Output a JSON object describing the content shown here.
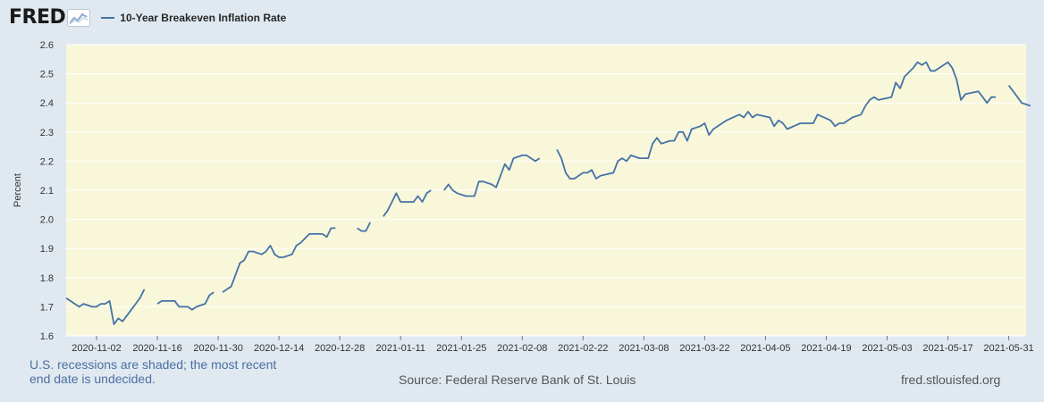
{
  "header": {
    "logo_text": "FRED",
    "logo_icon": "chart-line-icon"
  },
  "colors": {
    "plot_background": "#f8f7da",
    "series_line": "#4572a7",
    "page_background": "#e1e9f0"
  },
  "footer": {
    "recession_note": "U.S. recessions are shaded; the most recent end date is undecided.",
    "source": "Source: Federal Reserve Bank of St. Louis",
    "site": "fred.stlouisfed.org"
  },
  "chart_data": {
    "type": "line",
    "title": "",
    "xlabel": "",
    "ylabel": "Percent",
    "ylim": [
      1.6,
      2.6
    ],
    "yticks": [
      "1.6",
      "1.7",
      "1.8",
      "1.9",
      "2.0",
      "2.1",
      "2.2",
      "2.3",
      "2.4",
      "2.5",
      "2.6"
    ],
    "xlim": [
      "2020-10-26",
      "2021-06-04"
    ],
    "xticks": [
      "2020-11-02",
      "2020-11-16",
      "2020-11-30",
      "2020-12-14",
      "2020-12-28",
      "2021-01-11",
      "2021-01-25",
      "2021-02-08",
      "2021-02-22",
      "2021-03-08",
      "2021-03-22",
      "2021-04-05",
      "2021-04-19",
      "2021-05-03",
      "2021-05-17",
      "2021-05-31"
    ],
    "grid": "horizontal",
    "legend": "top-left",
    "series": [
      {
        "name": "10-Year Breakeven Inflation Rate",
        "segments": [
          [
            [
              "2020-10-26",
              1.73
            ],
            [
              "2020-10-27",
              1.72
            ],
            [
              "2020-10-28",
              1.71
            ],
            [
              "2020-10-29",
              1.7
            ],
            [
              "2020-10-30",
              1.71
            ],
            [
              "2020-11-01",
              1.7
            ],
            [
              "2020-11-02",
              1.7
            ],
            [
              "2020-11-03",
              1.71
            ],
            [
              "2020-11-04",
              1.71
            ],
            [
              "2020-11-05",
              1.72
            ],
            [
              "2020-11-06",
              1.64
            ],
            [
              "2020-11-07",
              1.66
            ],
            [
              "2020-11-08",
              1.65
            ],
            [
              "2020-11-10",
              1.69
            ],
            [
              "2020-11-12",
              1.73
            ],
            [
              "2020-11-13",
              1.76
            ]
          ],
          [
            [
              "2020-11-16",
              1.71
            ],
            [
              "2020-11-17",
              1.72
            ],
            [
              "2020-11-18",
              1.72
            ],
            [
              "2020-11-20",
              1.72
            ],
            [
              "2020-11-21",
              1.7
            ],
            [
              "2020-11-23",
              1.7
            ],
            [
              "2020-11-24",
              1.69
            ],
            [
              "2020-11-25",
              1.7
            ],
            [
              "2020-11-27",
              1.71
            ],
            [
              "2020-11-28",
              1.74
            ],
            [
              "2020-11-29",
              1.75
            ]
          ],
          [
            [
              "2020-12-01",
              1.75
            ],
            [
              "2020-12-03",
              1.77
            ],
            [
              "2020-12-05",
              1.85
            ],
            [
              "2020-12-06",
              1.86
            ],
            [
              "2020-12-07",
              1.89
            ],
            [
              "2020-12-08",
              1.89
            ],
            [
              "2020-12-10",
              1.88
            ],
            [
              "2020-12-11",
              1.89
            ],
            [
              "2020-12-12",
              1.91
            ],
            [
              "2020-12-13",
              1.88
            ],
            [
              "2020-12-14",
              1.87
            ],
            [
              "2020-12-15",
              1.87
            ],
            [
              "2020-12-17",
              1.88
            ],
            [
              "2020-12-18",
              1.91
            ],
            [
              "2020-12-19",
              1.92
            ],
            [
              "2020-12-21",
              1.95
            ],
            [
              "2020-12-22",
              1.95
            ],
            [
              "2020-12-24",
              1.95
            ],
            [
              "2020-12-25",
              1.94
            ],
            [
              "2020-12-26",
              1.97
            ],
            [
              "2020-12-27",
              1.97
            ]
          ],
          [
            [
              "2021-01-01",
              1.97
            ],
            [
              "2021-01-02",
              1.96
            ],
            [
              "2021-01-03",
              1.96
            ],
            [
              "2021-01-04",
              1.99
            ]
          ],
          [
            [
              "2021-01-07",
              2.01
            ],
            [
              "2021-01-08",
              2.03
            ],
            [
              "2021-01-09",
              2.06
            ],
            [
              "2021-01-10",
              2.09
            ],
            [
              "2021-01-11",
              2.06
            ],
            [
              "2021-01-12",
              2.06
            ],
            [
              "2021-01-14",
              2.06
            ],
            [
              "2021-01-15",
              2.08
            ],
            [
              "2021-01-16",
              2.06
            ],
            [
              "2021-01-17",
              2.09
            ],
            [
              "2021-01-18",
              2.1
            ]
          ],
          [
            [
              "2021-01-21",
              2.1
            ],
            [
              "2021-01-22",
              2.12
            ],
            [
              "2021-01-23",
              2.1
            ],
            [
              "2021-01-24",
              2.09
            ],
            [
              "2021-01-26",
              2.08
            ],
            [
              "2021-01-28",
              2.08
            ],
            [
              "2021-01-29",
              2.13
            ],
            [
              "2021-01-30",
              2.13
            ],
            [
              "2021-02-01",
              2.12
            ],
            [
              "2021-02-02",
              2.11
            ],
            [
              "2021-02-04",
              2.19
            ],
            [
              "2021-02-05",
              2.17
            ],
            [
              "2021-02-06",
              2.21
            ],
            [
              "2021-02-08",
              2.22
            ],
            [
              "2021-02-09",
              2.22
            ],
            [
              "2021-02-11",
              2.2
            ],
            [
              "2021-02-12",
              2.21
            ]
          ],
          [
            [
              "2021-02-16",
              2.24
            ],
            [
              "2021-02-17",
              2.21
            ],
            [
              "2021-02-18",
              2.16
            ],
            [
              "2021-02-19",
              2.14
            ],
            [
              "2021-02-20",
              2.14
            ],
            [
              "2021-02-22",
              2.16
            ],
            [
              "2021-02-23",
              2.16
            ],
            [
              "2021-02-24",
              2.17
            ],
            [
              "2021-02-25",
              2.14
            ],
            [
              "2021-02-26",
              2.15
            ],
            [
              "2021-03-01",
              2.16
            ],
            [
              "2021-03-02",
              2.2
            ],
            [
              "2021-03-03",
              2.21
            ],
            [
              "2021-03-04",
              2.2
            ],
            [
              "2021-03-05",
              2.22
            ],
            [
              "2021-03-07",
              2.21
            ],
            [
              "2021-03-09",
              2.21
            ],
            [
              "2021-03-10",
              2.26
            ],
            [
              "2021-03-11",
              2.28
            ],
            [
              "2021-03-12",
              2.26
            ],
            [
              "2021-03-14",
              2.27
            ],
            [
              "2021-03-15",
              2.27
            ],
            [
              "2021-03-16",
              2.3
            ],
            [
              "2021-03-17",
              2.3
            ],
            [
              "2021-03-18",
              2.27
            ],
            [
              "2021-03-19",
              2.31
            ],
            [
              "2021-03-21",
              2.32
            ],
            [
              "2021-03-22",
              2.33
            ],
            [
              "2021-03-23",
              2.29
            ],
            [
              "2021-03-24",
              2.31
            ],
            [
              "2021-03-25",
              2.32
            ],
            [
              "2021-03-27",
              2.34
            ],
            [
              "2021-03-30",
              2.36
            ],
            [
              "2021-03-31",
              2.35
            ],
            [
              "2021-04-01",
              2.37
            ],
            [
              "2021-04-02",
              2.35
            ],
            [
              "2021-04-03",
              2.36
            ],
            [
              "2021-04-06",
              2.35
            ],
            [
              "2021-04-07",
              2.32
            ],
            [
              "2021-04-08",
              2.34
            ],
            [
              "2021-04-09",
              2.33
            ],
            [
              "2021-04-10",
              2.31
            ],
            [
              "2021-04-13",
              2.33
            ],
            [
              "2021-04-16",
              2.33
            ],
            [
              "2021-04-17",
              2.36
            ],
            [
              "2021-04-20",
              2.34
            ],
            [
              "2021-04-21",
              2.32
            ],
            [
              "2021-04-22",
              2.33
            ],
            [
              "2021-04-23",
              2.33
            ],
            [
              "2021-04-25",
              2.35
            ],
            [
              "2021-04-27",
              2.36
            ],
            [
              "2021-04-28",
              2.39
            ],
            [
              "2021-04-29",
              2.41
            ],
            [
              "2021-04-30",
              2.42
            ],
            [
              "2021-05-01",
              2.41
            ],
            [
              "2021-05-04",
              2.42
            ],
            [
              "2021-05-05",
              2.47
            ],
            [
              "2021-05-06",
              2.45
            ],
            [
              "2021-05-07",
              2.49
            ],
            [
              "2021-05-09",
              2.52
            ],
            [
              "2021-05-10",
              2.54
            ],
            [
              "2021-05-11",
              2.53
            ],
            [
              "2021-05-12",
              2.54
            ],
            [
              "2021-05-13",
              2.51
            ],
            [
              "2021-05-14",
              2.51
            ],
            [
              "2021-05-17",
              2.54
            ],
            [
              "2021-05-18",
              2.52
            ],
            [
              "2021-05-19",
              2.48
            ],
            [
              "2021-05-20",
              2.41
            ],
            [
              "2021-05-21",
              2.43
            ],
            [
              "2021-05-24",
              2.44
            ],
            [
              "2021-05-25",
              2.42
            ],
            [
              "2021-05-26",
              2.4
            ],
            [
              "2021-05-27",
              2.42
            ],
            [
              "2021-05-28",
              2.42
            ]
          ],
          [
            [
              "2021-05-31",
              2.46
            ],
            [
              "2021-06-02",
              2.42
            ],
            [
              "2021-06-03",
              2.4
            ],
            [
              "2021-06-05",
              2.39
            ]
          ]
        ]
      }
    ]
  }
}
